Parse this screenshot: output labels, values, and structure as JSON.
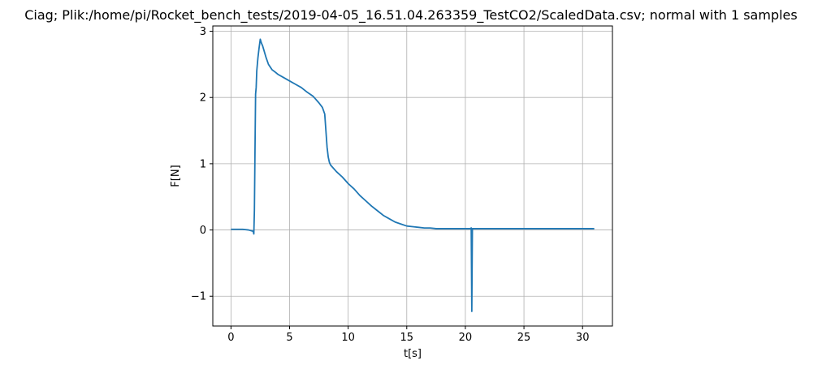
{
  "chart_data": {
    "type": "line",
    "title": "Ciag; Plik:/home/pi/Rocket_bench_tests/2019-04-05_16.51.04.263359_TestCO2/ScaledData.csv; normal with 1 samples",
    "xlabel": "t[s]",
    "ylabel": "F[N]",
    "xlim": [
      -1.55,
      32.55
    ],
    "ylim": [
      -1.45,
      3.08
    ],
    "xticks": [
      0,
      5,
      10,
      15,
      20,
      25,
      30
    ],
    "xtick_labels": [
      "0",
      "5",
      "10",
      "15",
      "20",
      "25",
      "30"
    ],
    "yticks": [
      -1,
      0,
      1,
      2,
      3
    ],
    "ytick_labels": [
      "−1",
      "0",
      "1",
      "2",
      "3"
    ],
    "grid": true,
    "line_color": "#1f77b4",
    "series": [
      {
        "x": [
          0.0,
          0.5,
          1.0,
          1.5,
          1.9,
          1.95,
          2.0,
          2.05,
          2.1,
          2.15,
          2.2,
          2.3,
          2.4,
          2.5,
          2.6,
          2.7,
          2.8,
          3.0,
          3.2,
          3.5,
          3.8,
          4.0,
          4.5,
          5.0,
          5.5,
          6.0,
          6.5,
          7.0,
          7.5,
          7.8,
          8.0,
          8.1,
          8.2,
          8.3,
          8.4,
          8.5,
          9.0,
          9.5,
          10.0,
          10.5,
          11.0,
          11.5,
          12.0,
          12.5,
          13.0,
          13.5,
          14.0,
          14.5,
          15.0,
          15.5,
          16.0,
          16.5,
          17.0,
          17.5,
          18.0,
          18.5,
          19.0,
          19.5,
          20.0,
          20.4,
          20.5,
          20.55,
          20.6,
          20.7,
          21.0,
          21.5,
          22.0,
          22.5,
          23.0,
          24.0,
          25.0,
          26.0,
          27.0,
          28.0,
          29.0,
          30.0,
          30.5,
          31.0
        ],
        "y": [
          0.01,
          0.01,
          0.01,
          0.0,
          -0.02,
          -0.06,
          0.3,
          1.2,
          2.05,
          2.15,
          2.4,
          2.6,
          2.75,
          2.88,
          2.82,
          2.78,
          2.72,
          2.6,
          2.5,
          2.42,
          2.38,
          2.35,
          2.3,
          2.25,
          2.2,
          2.15,
          2.08,
          2.02,
          1.92,
          1.85,
          1.75,
          1.5,
          1.25,
          1.1,
          1.02,
          0.98,
          0.88,
          0.8,
          0.7,
          0.62,
          0.52,
          0.44,
          0.36,
          0.29,
          0.22,
          0.17,
          0.12,
          0.09,
          0.06,
          0.05,
          0.04,
          0.03,
          0.03,
          0.02,
          0.02,
          0.02,
          0.02,
          0.02,
          0.02,
          0.02,
          0.03,
          -1.23,
          0.02,
          0.02,
          0.02,
          0.02,
          0.02,
          0.02,
          0.02,
          0.02,
          0.02,
          0.02,
          0.02,
          0.02,
          0.02,
          0.02,
          0.02,
          0.02
        ]
      }
    ]
  }
}
